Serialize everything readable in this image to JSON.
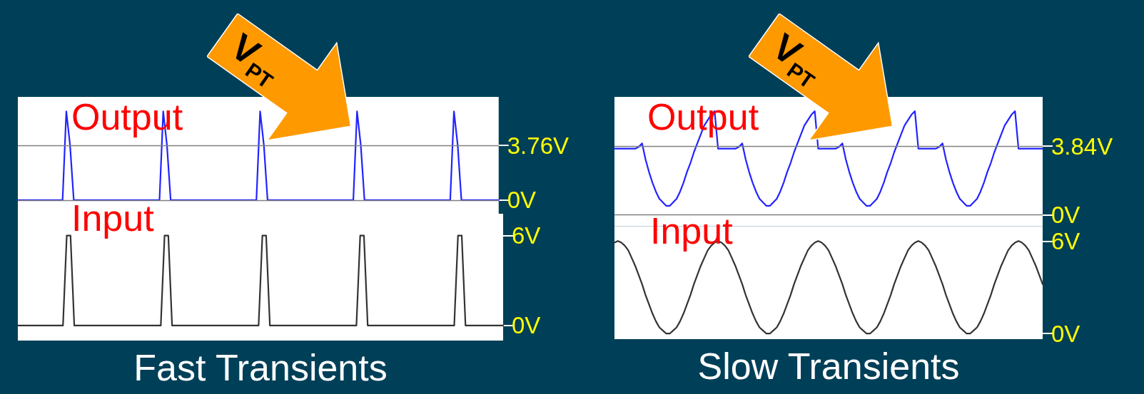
{
  "chart_data": [
    {
      "type": "line",
      "annotations": [
        "V$_{PT}$"
      ],
      "tick_labels": "y",
      "categories": [
        null,
        null,
        null,
        null,
        null,
        null,
        null,
        null,
        null,
        null,
        null,
        null,
        null,
        null,
        null,
        null,
        null,
        null,
        null,
        null,
        null,
        null,
        null,
        null,
        null,
        null,
        null,
        null,
        null,
        null,
        null,
        null,
        null,
        null,
        null,
        null,
        null,
        null,
        null,
        null,
        null,
        null,
        null,
        null,
        null,
        null,
        null,
        null,
        null,
        null,
        null,
        null,
        null,
        null,
        null,
        null,
        null,
        null,
        null,
        null,
        null,
        null,
        null,
        null,
        null,
        null,
        null,
        null,
        null,
        null,
        null,
        null,
        null,
        null,
        null,
        null,
        null,
        null,
        null,
        null,
        null,
        null,
        null,
        null,
        null,
        null,
        null,
        null,
        null,
        null,
        null,
        null,
        null,
        null,
        null,
        null,
        null,
        null,
        null,
        null,
        null,
        null,
        null,
        null,
        null,
        null,
        null,
        null,
        null,
        null,
        null,
        null,
        null,
        null,
        null,
        null,
        null,
        null,
        null,
        null,
        null,
        null,
        null,
        null,
        null,
        null,
        null,
        null,
        null,
        null
      ],
      "ylim": [
        -0.94,
        7.1
      ],
      "yticks": [
        {
          "value": 3.76,
          "label": "3.76V"
        },
        {
          "value": 0,
          "label": "0V"
        }
      ],
      "ref_lines": [
        {
          "axis": "y",
          "value": 3.76,
          "color": "#808080"
        },
        {
          "axis": "y",
          "value": 0,
          "color": "#808080"
        }
      ],
      "series": [
        {
          "name": "Output",
          "color": "#2323ff",
          "values": [
            0,
            0,
            0,
            0,
            0,
            0,
            0,
            0,
            0,
            0,
            0,
            0,
            0,
            6.1,
            3.8,
            0,
            0,
            0,
            0,
            0,
            0,
            0,
            0,
            0,
            0,
            0,
            0,
            0,
            0,
            0,
            0,
            0,
            0,
            0,
            0,
            0,
            0,
            0,
            0,
            6.1,
            3.8,
            0,
            0,
            0,
            0,
            0,
            0,
            0,
            0,
            0,
            0,
            0,
            0,
            0,
            0,
            0,
            0,
            0,
            0,
            0,
            0,
            0,
            0,
            0,
            0,
            6.1,
            3.8,
            0,
            0,
            0,
            0,
            0,
            0,
            0,
            0,
            0,
            0,
            0,
            0,
            0,
            0,
            0,
            0,
            0,
            0,
            0,
            0,
            0,
            0,
            0,
            0,
            6.1,
            3.8,
            0,
            0,
            0,
            0,
            0,
            0,
            0,
            0,
            0,
            0,
            0,
            0,
            0,
            0,
            0,
            0,
            0,
            0,
            0,
            0,
            0,
            0,
            0,
            0,
            6.1,
            3.8,
            0,
            0,
            0,
            0,
            0,
            0,
            0,
            0,
            0,
            0,
            0
          ]
        }
      ]
    },
    {
      "type": "line",
      "annotations": [
        "V$_{PT}$"
      ],
      "tick_labels": "y",
      "categories": [
        null,
        null,
        null,
        null,
        null,
        null,
        null,
        null,
        null,
        null,
        null,
        null,
        null,
        null,
        null,
        null,
        null,
        null,
        null,
        null,
        null,
        null,
        null,
        null,
        null,
        null,
        null,
        null,
        null,
        null,
        null,
        null,
        null,
        null,
        null,
        null,
        null,
        null,
        null,
        null,
        null,
        null,
        null,
        null,
        null,
        null,
        null,
        null,
        null,
        null,
        null,
        null,
        null,
        null,
        null,
        null,
        null,
        null,
        null,
        null,
        null,
        null,
        null,
        null,
        null,
        null,
        null,
        null,
        null,
        null,
        null,
        null,
        null,
        null,
        null,
        null,
        null,
        null,
        null,
        null,
        null,
        null,
        null,
        null,
        null,
        null,
        null,
        null,
        null,
        null,
        null,
        null,
        null,
        null,
        null,
        null,
        null,
        null,
        null,
        null,
        null,
        null,
        null,
        null,
        null,
        null,
        null,
        null,
        null,
        null,
        null,
        null,
        null,
        null,
        null,
        null,
        null,
        null,
        null,
        null,
        null,
        null,
        null,
        null,
        null
      ],
      "ylim": [
        -0.65,
        6.6
      ],
      "yticks": [
        {
          "value": 3.84,
          "label": "3.84V"
        },
        {
          "value": 0,
          "label": "0V"
        }
      ],
      "ref_lines": [
        {
          "axis": "y",
          "value": 3.84,
          "color": "#808080"
        },
        {
          "axis": "y",
          "value": 0,
          "color": "#808080"
        }
      ],
      "series": [
        {
          "name": "Output",
          "color": "#2323ff",
          "values": [
            3.7,
            3.7,
            3.7,
            3.7,
            3.7,
            3.7,
            3.7,
            3.8,
            4,
            3.1,
            2.4,
            1.8,
            1.3,
            0.9,
            0.7,
            0.5,
            0.5,
            0.7,
            0.9,
            1.3,
            1.8,
            2.4,
            2.9,
            3.5,
            4,
            4.5,
            5,
            5.3,
            5.6,
            5.8,
            3.7,
            3.7,
            3.7,
            3.7,
            3.7,
            3.7,
            3.8,
            4,
            3.1,
            2.4,
            1.8,
            1.3,
            0.9,
            0.7,
            0.5,
            0.5,
            0.7,
            0.9,
            1.3,
            1.8,
            2.4,
            2.9,
            3.5,
            4,
            4.5,
            5,
            5.3,
            5.6,
            5.8,
            3.7,
            3.7,
            3.7,
            3.7,
            3.7,
            3.7,
            3.8,
            4,
            3.1,
            2.4,
            1.8,
            1.3,
            0.9,
            0.7,
            0.5,
            0.5,
            0.7,
            0.9,
            1.3,
            1.8,
            2.4,
            2.9,
            3.5,
            4,
            4.5,
            5,
            5.3,
            5.6,
            5.8,
            3.7,
            3.7,
            3.7,
            3.7,
            3.7,
            3.7,
            3.8,
            4,
            3.1,
            2.4,
            1.8,
            1.3,
            0.9,
            0.7,
            0.5,
            0.5,
            0.7,
            0.9,
            1.3,
            1.8,
            2.4,
            2.9,
            3.5,
            4,
            4.5,
            5,
            5.3,
            5.6,
            5.8,
            3.7,
            3.7,
            3.7,
            3.7,
            3.7,
            3.7,
            3.7,
            3.7
          ]
        }
      ]
    },
    {
      "type": "line",
      "xlabel": "Fast Transients",
      "tick_labels": "y",
      "categories": [
        null,
        null,
        null,
        null,
        null,
        null,
        null,
        null,
        null,
        null,
        null,
        null,
        null,
        null,
        null,
        null,
        null,
        null,
        null,
        null,
        null,
        null,
        null,
        null,
        null,
        null,
        null,
        null,
        null,
        null,
        null,
        null,
        null,
        null,
        null,
        null,
        null,
        null,
        null,
        null,
        null,
        null,
        null,
        null,
        null,
        null,
        null,
        null,
        null,
        null,
        null,
        null,
        null,
        null,
        null,
        null,
        null,
        null,
        null,
        null,
        null,
        null,
        null,
        null,
        null,
        null,
        null,
        null,
        null,
        null,
        null,
        null,
        null,
        null,
        null,
        null,
        null,
        null,
        null,
        null,
        null,
        null,
        null,
        null,
        null,
        null,
        null,
        null,
        null,
        null,
        null,
        null,
        null,
        null,
        null,
        null,
        null,
        null,
        null,
        null,
        null,
        null,
        null,
        null,
        null,
        null,
        null,
        null,
        null,
        null,
        null,
        null,
        null,
        null,
        null,
        null,
        null,
        null,
        null,
        null,
        null,
        null,
        null,
        null,
        null,
        null,
        null,
        null,
        null,
        null
      ],
      "ylim": [
        -1,
        7.46
      ],
      "yticks": [
        {
          "value": 6,
          "label": "6V"
        },
        {
          "value": 0,
          "label": "0V"
        }
      ],
      "series": [
        {
          "name": "Input",
          "color": "#333333",
          "values": [
            0,
            0,
            0,
            0,
            0,
            0,
            0,
            0,
            0,
            0,
            0,
            0,
            0,
            6,
            6,
            0,
            0,
            0,
            0,
            0,
            0,
            0,
            0,
            0,
            0,
            0,
            0,
            0,
            0,
            0,
            0,
            0,
            0,
            0,
            0,
            0,
            0,
            0,
            0,
            6,
            6,
            0,
            0,
            0,
            0,
            0,
            0,
            0,
            0,
            0,
            0,
            0,
            0,
            0,
            0,
            0,
            0,
            0,
            0,
            0,
            0,
            0,
            0,
            0,
            0,
            6,
            6,
            0,
            0,
            0,
            0,
            0,
            0,
            0,
            0,
            0,
            0,
            0,
            0,
            0,
            0,
            0,
            0,
            0,
            0,
            0,
            0,
            0,
            0,
            0,
            0,
            6,
            6,
            0,
            0,
            0,
            0,
            0,
            0,
            0,
            0,
            0,
            0,
            0,
            0,
            0,
            0,
            0,
            0,
            0,
            0,
            0,
            0,
            0,
            0,
            0,
            0,
            6,
            6,
            0,
            0,
            0,
            0,
            0,
            0,
            0,
            0,
            0,
            0,
            0
          ]
        }
      ]
    },
    {
      "type": "line",
      "xlabel": "Slow Transients",
      "tick_labels": "y",
      "categories": [
        null,
        null,
        null,
        null,
        null,
        null,
        null,
        null,
        null,
        null,
        null,
        null,
        null,
        null,
        null,
        null,
        null,
        null,
        null,
        null,
        null,
        null,
        null,
        null,
        null,
        null,
        null,
        null,
        null,
        null,
        null,
        null,
        null,
        null,
        null,
        null,
        null,
        null,
        null,
        null,
        null,
        null,
        null,
        null,
        null,
        null,
        null,
        null,
        null,
        null,
        null,
        null,
        null,
        null,
        null,
        null,
        null,
        null,
        null,
        null,
        null,
        null,
        null,
        null,
        null,
        null,
        null,
        null,
        null,
        null,
        null,
        null,
        null,
        null,
        null,
        null,
        null,
        null,
        null,
        null,
        null,
        null,
        null,
        null,
        null,
        null,
        null,
        null,
        null,
        null,
        null,
        null,
        null,
        null,
        null,
        null,
        null,
        null,
        null,
        null,
        null,
        null,
        null,
        null,
        null,
        null,
        null,
        null,
        null,
        null,
        null,
        null,
        null,
        null,
        null,
        null,
        null,
        null,
        null,
        null,
        null,
        null,
        null,
        null,
        null
      ],
      "ylim": [
        -0.36,
        6.94
      ],
      "yticks": [
        {
          "value": 6,
          "label": "6V"
        },
        {
          "value": 0,
          "label": "0V"
        }
      ],
      "series": [
        {
          "name": "Input",
          "color": "#333333",
          "values": [
            5.9,
            6,
            5.9,
            5.7,
            5.4,
            4.9,
            4.4,
            3.8,
            3.2,
            2.5,
            1.9,
            1.3,
            0.8,
            0.4,
            0.2,
            0,
            0,
            0.2,
            0.4,
            0.8,
            1.3,
            1.9,
            2.5,
            3.2,
            3.8,
            4.4,
            4.9,
            5.4,
            5.7,
            5.9,
            6,
            5.9,
            5.7,
            5.4,
            4.9,
            4.4,
            3.8,
            3.2,
            2.5,
            1.9,
            1.3,
            0.8,
            0.4,
            0.2,
            0,
            0,
            0.2,
            0.4,
            0.8,
            1.3,
            1.9,
            2.5,
            3.2,
            3.8,
            4.4,
            4.9,
            5.4,
            5.7,
            5.9,
            6,
            5.9,
            5.7,
            5.4,
            4.9,
            4.4,
            3.8,
            3.2,
            2.5,
            1.9,
            1.3,
            0.8,
            0.4,
            0.2,
            0,
            0,
            0.2,
            0.4,
            0.8,
            1.3,
            1.9,
            2.5,
            3.2,
            3.8,
            4.4,
            4.9,
            5.4,
            5.7,
            5.9,
            6,
            5.9,
            5.7,
            5.4,
            4.9,
            4.4,
            3.8,
            3.2,
            2.5,
            1.9,
            1.3,
            0.8,
            0.4,
            0.2,
            0,
            0,
            0.2,
            0.4,
            0.8,
            1.3,
            1.9,
            2.5,
            3.2,
            3.8,
            4.4,
            4.9,
            5.4,
            5.7,
            5.9,
            6,
            5.9,
            5.7,
            5.4,
            4.9,
            4.4,
            3.8,
            3.2
          ]
        }
      ]
    }
  ]
}
